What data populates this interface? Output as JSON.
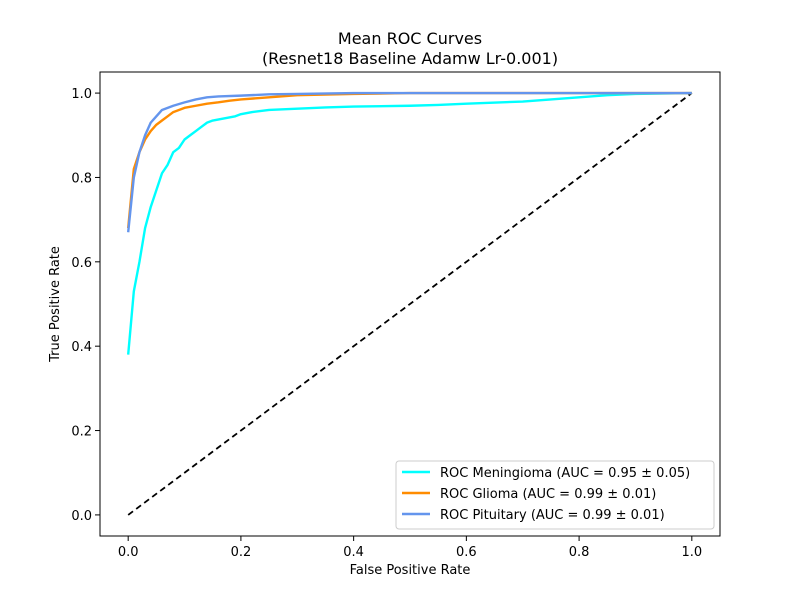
{
  "chart_data": {
    "type": "line",
    "title": "Mean ROC Curves",
    "subtitle": "(Resnet18 Baseline Adamw Lr-0.001)",
    "xlabel": "False Positive Rate",
    "ylabel": "True Positive Rate",
    "xlim": [
      -0.05,
      1.05
    ],
    "ylim": [
      -0.05,
      1.05
    ],
    "xticks": [
      0.0,
      0.2,
      0.4,
      0.6,
      0.8,
      1.0
    ],
    "yticks": [
      0.0,
      0.2,
      0.4,
      0.6,
      0.8,
      1.0
    ],
    "xtick_labels": [
      "0.0",
      "0.2",
      "0.4",
      "0.6",
      "0.8",
      "1.0"
    ],
    "ytick_labels": [
      "0.0",
      "0.2",
      "0.4",
      "0.6",
      "0.8",
      "1.0"
    ],
    "grid": false,
    "legend_position": "lower-right",
    "series": [
      {
        "name": "ROC Meningioma (AUC = 0.95 ± 0.05)",
        "color": "#00ffff",
        "x": [
          0.0,
          0.01,
          0.02,
          0.03,
          0.04,
          0.05,
          0.06,
          0.07,
          0.08,
          0.09,
          0.1,
          0.11,
          0.12,
          0.13,
          0.14,
          0.15,
          0.17,
          0.19,
          0.2,
          0.22,
          0.25,
          0.3,
          0.35,
          0.4,
          0.5,
          0.55,
          0.6,
          0.7,
          0.75,
          0.8,
          0.85,
          0.9,
          1.0
        ],
        "y": [
          0.38,
          0.53,
          0.6,
          0.68,
          0.73,
          0.77,
          0.81,
          0.83,
          0.86,
          0.87,
          0.89,
          0.9,
          0.91,
          0.92,
          0.93,
          0.935,
          0.94,
          0.945,
          0.95,
          0.955,
          0.96,
          0.963,
          0.966,
          0.968,
          0.97,
          0.972,
          0.975,
          0.98,
          0.985,
          0.99,
          0.995,
          0.998,
          1.0
        ]
      },
      {
        "name": "ROC Glioma (AUC = 0.99 ± 0.01)",
        "color": "#ff8c00",
        "x": [
          0.0,
          0.01,
          0.02,
          0.03,
          0.04,
          0.05,
          0.06,
          0.07,
          0.08,
          0.09,
          0.1,
          0.12,
          0.14,
          0.16,
          0.18,
          0.2,
          0.25,
          0.3,
          0.4,
          0.5,
          1.0
        ],
        "y": [
          0.68,
          0.82,
          0.86,
          0.89,
          0.91,
          0.925,
          0.935,
          0.945,
          0.955,
          0.96,
          0.965,
          0.97,
          0.975,
          0.978,
          0.982,
          0.985,
          0.99,
          0.995,
          0.998,
          1.0,
          1.0
        ]
      },
      {
        "name": "ROC Pituitary (AUC = 0.99 ± 0.01)",
        "color": "#6495ed",
        "x": [
          0.0,
          0.01,
          0.02,
          0.03,
          0.04,
          0.05,
          0.06,
          0.08,
          0.1,
          0.12,
          0.14,
          0.16,
          0.2,
          0.25,
          0.3,
          0.4,
          1.0
        ],
        "y": [
          0.67,
          0.8,
          0.86,
          0.9,
          0.93,
          0.945,
          0.96,
          0.97,
          0.978,
          0.985,
          0.99,
          0.992,
          0.994,
          0.997,
          0.998,
          1.0,
          1.0
        ]
      }
    ],
    "reference_line": {
      "style": "dashed",
      "color": "#000000",
      "x": [
        0.0,
        1.0
      ],
      "y": [
        0.0,
        1.0
      ]
    }
  }
}
